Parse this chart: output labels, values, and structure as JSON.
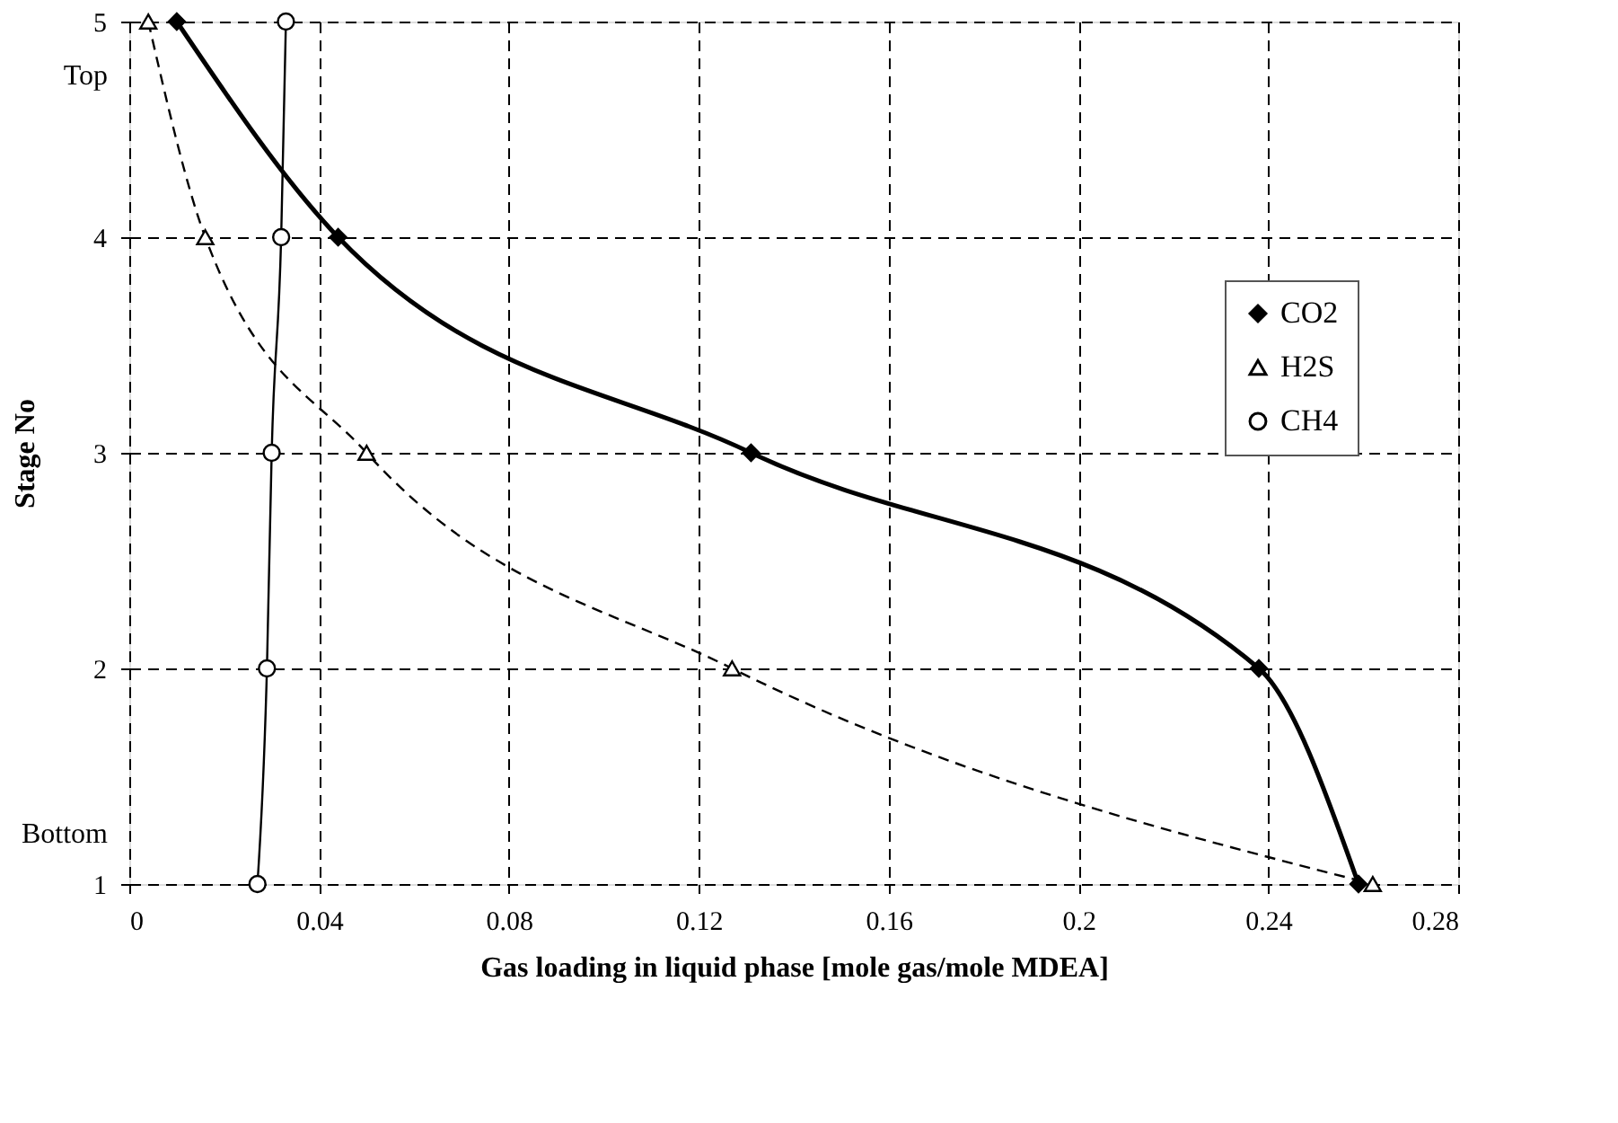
{
  "chart_data": {
    "type": "line",
    "xlabel": "Gas loading in liquid phase [mole gas/mole MDEA]",
    "ylabel": "Stage No",
    "series": [
      {
        "name": "CO2",
        "color": "#000000",
        "marker": "diamond",
        "line_style": "solid",
        "x": [
          0.01,
          0.044,
          0.131,
          0.238,
          0.259
        ],
        "values": [
          5,
          4,
          3,
          2,
          1
        ]
      },
      {
        "name": "H2S",
        "color": "#000000",
        "marker": "triangle",
        "line_style": "dashed",
        "x": [
          0.004,
          0.016,
          0.05,
          0.127,
          0.262
        ],
        "values": [
          5,
          4,
          3,
          2,
          1
        ]
      },
      {
        "name": "CH4",
        "color": "#000000",
        "marker": "circle",
        "line_style": "solid",
        "x": [
          0.027,
          0.029,
          0.03,
          0.032,
          0.033
        ],
        "values": [
          1,
          2,
          3,
          4,
          5
        ]
      }
    ],
    "xlim": [
      0,
      0.28
    ],
    "xticks": [
      0,
      0.04,
      0.08,
      0.12,
      0.16,
      0.2,
      0.24,
      0.28
    ],
    "ylim": [
      1,
      5
    ],
    "yticks": [
      1,
      2,
      3,
      4,
      5
    ],
    "annotations": [
      "Top",
      "Bottom"
    ],
    "grid": true,
    "legend": "right"
  }
}
